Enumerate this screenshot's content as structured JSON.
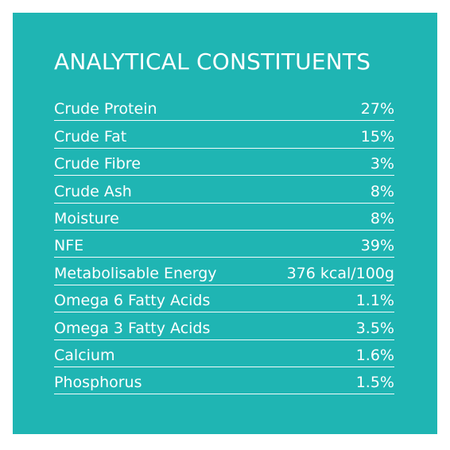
{
  "title": "ANALYTICAL CONSTITUENTS",
  "colors": {
    "panel_background": "#1fb5b3",
    "text": "#ffffff",
    "page_background": "#ffffff"
  },
  "rows": [
    {
      "label": "Crude Protein",
      "value": "27%"
    },
    {
      "label": "Crude Fat",
      "value": "15%"
    },
    {
      "label": "Crude Fibre",
      "value": "3%"
    },
    {
      "label": "Crude Ash",
      "value": "8%"
    },
    {
      "label": "Moisture",
      "value": "8%"
    },
    {
      "label": "NFE",
      "value": "39%"
    },
    {
      "label": "Metabolisable Energy",
      "value": "376 kcal/100g"
    },
    {
      "label": "Omega 6 Fatty Acids",
      "value": "1.1%"
    },
    {
      "label": "Omega 3 Fatty Acids",
      "value": "3.5%"
    },
    {
      "label": "Calcium",
      "value": "1.6%"
    },
    {
      "label": "Phosphorus",
      "value": "1.5%"
    }
  ]
}
